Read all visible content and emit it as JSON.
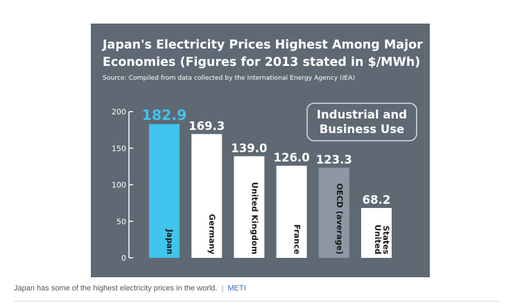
{
  "chart_data": {
    "type": "bar",
    "title_line1": "Japan's Electricity Prices Highest Among Major",
    "title_line2": "Economies (Figures for 2013 stated in $/MWh)",
    "source": "Source: Compiled from data collected by the International Energy Agency (IEA)",
    "badge_line1": "Industrial and",
    "badge_line2": "Business Use",
    "categories": [
      "Japan",
      "Germany",
      "United Kingdom",
      "France",
      "OECD (average)",
      "United States"
    ],
    "category_lines": [
      [
        "Japan"
      ],
      [
        "Germany"
      ],
      [
        "United Kingdom"
      ],
      [
        "France"
      ],
      [
        "OECD (average)"
      ],
      [
        "United",
        "States"
      ]
    ],
    "values": [
      182.9,
      169.3,
      139.0,
      126.0,
      123.3,
      68.2
    ],
    "value_labels": [
      "182.9",
      "169.3",
      "139.0",
      "126.0",
      "123.3",
      "68.2"
    ],
    "bar_colors": [
      "#3fc4ee",
      "#ffffff",
      "#ffffff",
      "#ffffff",
      "#8d98a3",
      "#ffffff"
    ],
    "value_label_colors": [
      "#3fc4ee",
      "#ffffff",
      "#ffffff",
      "#ffffff",
      "#ffffff",
      "#ffffff"
    ],
    "yticks": [
      0,
      50,
      100,
      150,
      200
    ],
    "ylim": [
      0,
      200
    ],
    "ylabel": "$/MWh"
  },
  "caption": {
    "text": "Japan has some of the highest electricity prices in the world.",
    "separator": "|",
    "source": "METI"
  }
}
